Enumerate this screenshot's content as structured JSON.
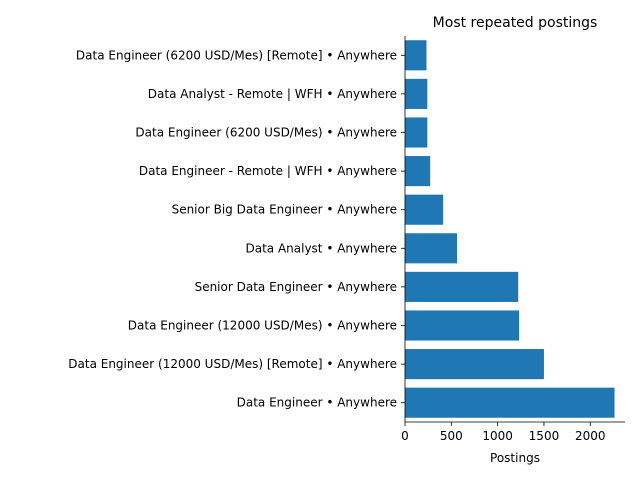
{
  "chart_data": {
    "type": "bar",
    "orientation": "horizontal",
    "title": "Most repeated postings",
    "xlabel": "Postings",
    "ylabel": "",
    "xlim": [
      0,
      2375
    ],
    "xticks": [
      0,
      500,
      1000,
      1500,
      2000
    ],
    "grid": false,
    "bar_color": "#1f77b4",
    "categories": [
      "Data Engineer • Anywhere",
      "Data Engineer (12000 USD/Mes) [Remote] • Anywhere",
      "Data Engineer (12000 USD/Mes) • Anywhere",
      "Senior Data Engineer • Anywhere",
      "Data Analyst • Anywhere",
      "Senior Big Data Engineer • Anywhere",
      "Data Engineer - Remote | WFH • Anywhere",
      "Data Engineer (6200 USD/Mes) • Anywhere",
      "Data Analyst - Remote | WFH • Anywhere",
      "Data Engineer (6200 USD/Mes) [Remote] • Anywhere"
    ],
    "values": [
      2262,
      1500,
      1232,
      1222,
      562,
      412,
      272,
      241,
      241,
      232
    ]
  }
}
